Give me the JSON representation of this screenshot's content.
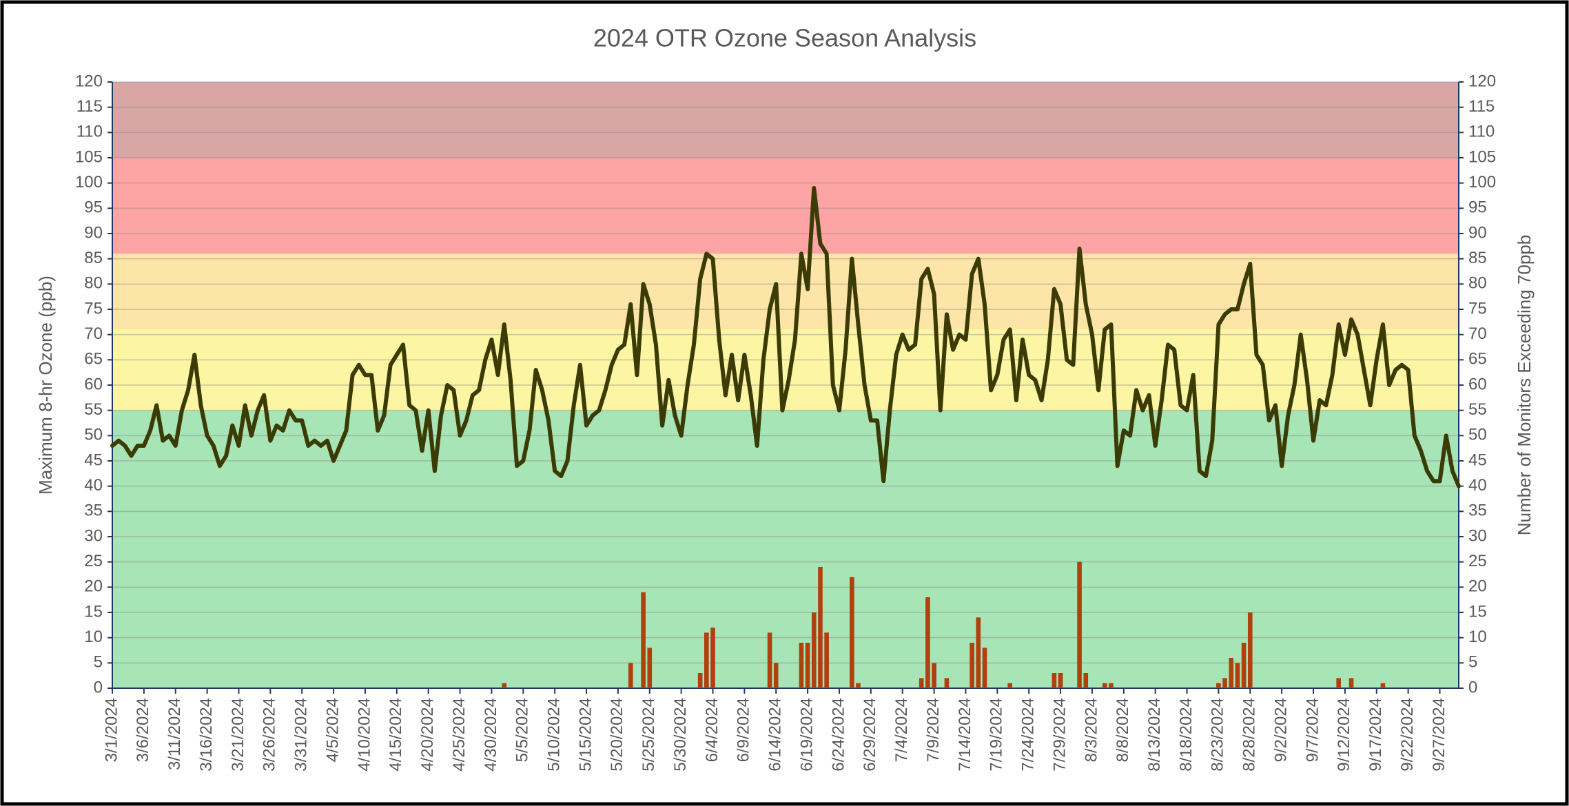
{
  "chart_data": {
    "type": "combo",
    "title": "2024 OTR Ozone Season Analysis",
    "y_label": "Maximum 8-hr Ozone (ppb)",
    "y2_label": "Number of Monitors Exceeding 70ppb",
    "categories": [
      "3/1/2024",
      null,
      null,
      null,
      null,
      "3/6/2024",
      null,
      null,
      null,
      null,
      "3/11/2024",
      null,
      null,
      null,
      null,
      "3/16/2024",
      null,
      null,
      null,
      null,
      "3/21/2024",
      null,
      null,
      null,
      null,
      "3/26/2024",
      null,
      null,
      null,
      null,
      "3/31/2024",
      null,
      null,
      null,
      null,
      "4/5/2024",
      null,
      null,
      null,
      null,
      "4/10/2024",
      null,
      null,
      null,
      null,
      "4/15/2024",
      null,
      null,
      null,
      null,
      "4/20/2024",
      null,
      null,
      null,
      null,
      "4/25/2024",
      null,
      null,
      null,
      null,
      "4/30/2024",
      null,
      null,
      null,
      null,
      "5/5/2024",
      null,
      null,
      null,
      null,
      "5/10/2024",
      null,
      null,
      null,
      null,
      "5/15/2024",
      null,
      null,
      null,
      null,
      "5/20/2024",
      null,
      null,
      null,
      null,
      "5/25/2024",
      null,
      null,
      null,
      null,
      "5/30/2024",
      null,
      null,
      null,
      null,
      "6/4/2024",
      null,
      null,
      null,
      null,
      "6/9/2024",
      null,
      null,
      null,
      null,
      "6/14/2024",
      null,
      null,
      null,
      null,
      "6/19/2024",
      null,
      null,
      null,
      null,
      "6/24/2024",
      null,
      null,
      null,
      null,
      "6/29/2024",
      null,
      null,
      null,
      null,
      "7/4/2024",
      null,
      null,
      null,
      null,
      "7/9/2024",
      null,
      null,
      null,
      null,
      "7/14/2024",
      null,
      null,
      null,
      null,
      "7/19/2024",
      null,
      null,
      null,
      null,
      "7/24/2024",
      null,
      null,
      null,
      null,
      "7/29/2024",
      null,
      null,
      null,
      null,
      "8/3/2024",
      null,
      null,
      null,
      null,
      "8/8/2024",
      null,
      null,
      null,
      null,
      "8/13/2024",
      null,
      null,
      null,
      null,
      "8/18/2024",
      null,
      null,
      null,
      null,
      "8/23/2024",
      null,
      null,
      null,
      null,
      "8/28/2024",
      null,
      null,
      null,
      null,
      "9/2/2024",
      null,
      null,
      null,
      null,
      "9/7/2024",
      null,
      null,
      null,
      null,
      "9/12/2024",
      null,
      null,
      null,
      null,
      "9/17/2024",
      null,
      null,
      null,
      null,
      "9/22/2024",
      null,
      null,
      null,
      null,
      "9/27/2024",
      null,
      null,
      null
    ],
    "series": [
      {
        "type": "line",
        "color": "#3b3b06",
        "values": [
          48,
          49,
          48,
          46,
          48,
          48,
          51,
          56,
          49,
          50,
          48,
          55,
          59,
          66,
          56,
          50,
          48,
          44,
          46,
          52,
          48,
          56,
          50,
          55,
          58,
          49,
          52,
          51,
          55,
          53,
          53,
          48,
          49,
          48,
          49,
          45,
          48,
          51,
          62,
          64,
          62,
          62,
          51,
          54,
          64,
          66,
          68,
          56,
          55,
          47,
          55,
          43,
          54,
          60,
          59,
          50,
          53,
          58,
          59,
          65,
          69,
          62,
          72,
          61,
          44,
          45,
          51,
          63,
          59,
          53,
          43,
          42,
          45,
          56,
          64,
          52,
          54,
          55,
          59,
          64,
          67,
          68,
          76,
          62,
          80,
          76,
          68,
          52,
          61,
          54,
          50,
          60,
          68,
          81,
          86,
          85,
          69,
          58,
          66,
          57,
          66,
          58,
          48,
          65,
          75,
          80,
          55,
          61,
          69,
          86,
          79,
          99,
          88,
          86,
          60,
          55,
          67,
          85,
          72,
          60,
          53,
          53,
          41,
          55,
          66,
          70,
          67,
          68,
          81,
          83,
          78,
          55,
          74,
          67,
          70,
          69,
          82,
          85,
          76,
          59,
          62,
          69,
          71,
          57,
          69,
          62,
          61,
          57,
          65,
          79,
          76,
          65,
          64,
          87,
          76,
          70,
          59,
          71,
          72,
          44,
          51,
          50,
          59,
          55,
          58,
          48,
          57,
          68,
          67,
          56,
          55,
          62,
          43,
          42,
          49,
          72,
          74,
          75,
          75,
          80,
          84,
          66,
          64,
          53,
          56,
          44,
          54,
          60,
          70,
          61,
          49,
          57,
          56,
          62,
          72,
          66,
          73,
          70,
          63,
          56,
          65,
          72,
          60,
          63,
          64,
          63,
          50,
          47,
          43,
          41,
          41,
          50,
          43,
          40
        ]
      },
      {
        "type": "bar",
        "axis": "y2",
        "color": "#b0400e",
        "values": [
          0,
          0,
          0,
          0,
          0,
          0,
          0,
          0,
          0,
          0,
          0,
          0,
          0,
          0,
          0,
          0,
          0,
          0,
          0,
          0,
          0,
          0,
          0,
          0,
          0,
          0,
          0,
          0,
          0,
          0,
          0,
          0,
          0,
          0,
          0,
          0,
          0,
          0,
          0,
          0,
          0,
          0,
          0,
          0,
          0,
          0,
          0,
          0,
          0,
          0,
          0,
          0,
          0,
          0,
          0,
          0,
          0,
          0,
          0,
          0,
          0,
          0,
          1,
          0,
          0,
          0,
          0,
          0,
          0,
          0,
          0,
          0,
          0,
          0,
          0,
          0,
          0,
          0,
          0,
          0,
          0,
          0,
          5,
          0,
          19,
          8,
          0,
          0,
          0,
          0,
          0,
          0,
          0,
          3,
          11,
          12,
          0,
          0,
          0,
          0,
          0,
          0,
          0,
          0,
          11,
          5,
          0,
          0,
          0,
          9,
          9,
          15,
          24,
          11,
          0,
          0,
          0,
          22,
          1,
          0,
          0,
          0,
          0,
          0,
          0,
          0,
          0,
          0,
          2,
          18,
          5,
          0,
          2,
          0,
          0,
          0,
          9,
          14,
          8,
          0,
          0,
          0,
          1,
          0,
          0,
          0,
          0,
          0,
          0,
          3,
          3,
          0,
          0,
          25,
          3,
          0,
          0,
          1,
          1,
          0,
          0,
          0,
          0,
          0,
          0,
          0,
          0,
          0,
          0,
          0,
          0,
          0,
          0,
          0,
          0,
          1,
          2,
          6,
          5,
          9,
          15,
          0,
          0,
          0,
          0,
          0,
          0,
          0,
          0,
          0,
          0,
          0,
          0,
          0,
          2,
          0,
          2,
          0,
          0,
          0,
          0,
          1,
          0,
          0,
          0,
          0,
          0,
          0,
          0,
          0,
          0,
          0,
          0,
          0
        ]
      }
    ],
    "bands": [
      {
        "from": 0,
        "to": 55,
        "color": "#a7e4b6"
      },
      {
        "from": 55,
        "to": 71,
        "color": "#fcf5a4"
      },
      {
        "from": 71,
        "to": 86,
        "color": "#fde4a7"
      },
      {
        "from": 86,
        "to": 105,
        "color": "#fda4a4"
      },
      {
        "from": 105,
        "to": 120,
        "color": "#d9a6a6"
      }
    ],
    "ylim": [
      0,
      120
    ],
    "yticks": [
      0,
      5,
      10,
      15,
      20,
      25,
      30,
      35,
      40,
      45,
      50,
      55,
      60,
      65,
      70,
      75,
      80,
      85,
      90,
      95,
      100,
      105,
      110,
      115,
      120
    ],
    "y2lim": [
      0,
      120
    ],
    "y2ticks": [
      0,
      5,
      10,
      15,
      20,
      25,
      30,
      35,
      40,
      45,
      50,
      55,
      60,
      65,
      70,
      75,
      80,
      85,
      90,
      95,
      100,
      105,
      110,
      115,
      120
    ],
    "grid": true
  }
}
